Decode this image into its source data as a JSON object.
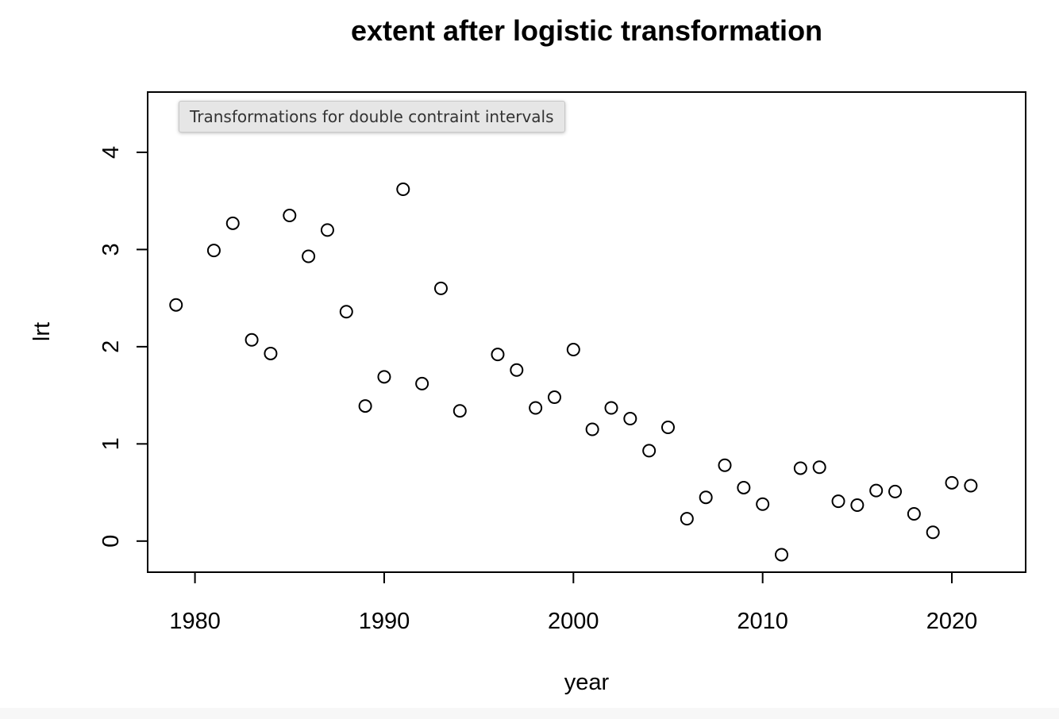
{
  "tooltip": {
    "text": "Transformations for double contraint intervals"
  },
  "chart_data": {
    "type": "scatter",
    "title": "extent after logistic transformation",
    "xlabel": "year",
    "ylabel": "lrt",
    "xlim": [
      1977.5,
      2023.9
    ],
    "ylim": [
      -0.32,
      4.62
    ],
    "x_ticks": [
      1980,
      1990,
      2000,
      2010,
      2020
    ],
    "y_ticks": [
      0,
      1,
      2,
      3,
      4
    ],
    "grid": false,
    "legend": "none",
    "marker": "open-circle",
    "points": [
      {
        "x": 1979,
        "y": 2.43
      },
      {
        "x": 1981,
        "y": 2.99
      },
      {
        "x": 1982,
        "y": 3.27
      },
      {
        "x": 1983,
        "y": 2.07
      },
      {
        "x": 1984,
        "y": 1.93
      },
      {
        "x": 1985,
        "y": 3.35
      },
      {
        "x": 1986,
        "y": 2.93
      },
      {
        "x": 1987,
        "y": 3.2
      },
      {
        "x": 1988,
        "y": 2.36
      },
      {
        "x": 1989,
        "y": 1.39
      },
      {
        "x": 1990,
        "y": 1.69
      },
      {
        "x": 1991,
        "y": 3.62
      },
      {
        "x": 1992,
        "y": 1.62
      },
      {
        "x": 1993,
        "y": 2.6
      },
      {
        "x": 1994,
        "y": 1.34
      },
      {
        "x": 1996,
        "y": 1.92
      },
      {
        "x": 1997,
        "y": 1.76
      },
      {
        "x": 1998,
        "y": 1.37
      },
      {
        "x": 1999,
        "y": 1.48
      },
      {
        "x": 2000,
        "y": 1.97
      },
      {
        "x": 2001,
        "y": 1.15
      },
      {
        "x": 2002,
        "y": 1.37
      },
      {
        "x": 2003,
        "y": 1.26
      },
      {
        "x": 2004,
        "y": 0.93
      },
      {
        "x": 2005,
        "y": 1.17
      },
      {
        "x": 2006,
        "y": 0.23
      },
      {
        "x": 2007,
        "y": 0.45
      },
      {
        "x": 2008,
        "y": 0.78
      },
      {
        "x": 2009,
        "y": 0.55
      },
      {
        "x": 2010,
        "y": 0.38
      },
      {
        "x": 2011,
        "y": -0.14
      },
      {
        "x": 2012,
        "y": 0.75
      },
      {
        "x": 2013,
        "y": 0.76
      },
      {
        "x": 2014,
        "y": 0.41
      },
      {
        "x": 2015,
        "y": 0.37
      },
      {
        "x": 2016,
        "y": 0.52
      },
      {
        "x": 2017,
        "y": 0.51
      },
      {
        "x": 2018,
        "y": 0.28
      },
      {
        "x": 2019,
        "y": 0.09
      },
      {
        "x": 2020,
        "y": 0.6
      },
      {
        "x": 2021,
        "y": 0.57
      }
    ]
  }
}
